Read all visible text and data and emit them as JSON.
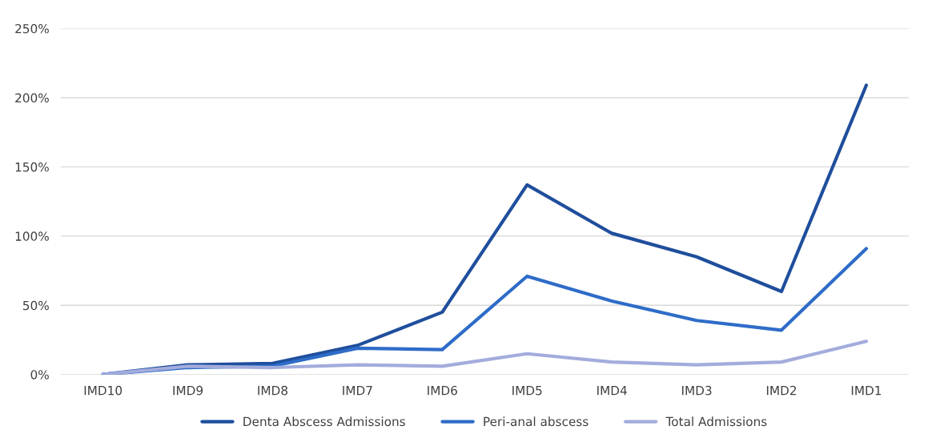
{
  "chart_data": {
    "type": "line",
    "categories": [
      "IMD10",
      "IMD9",
      "IMD8",
      "IMD7",
      "IMD6",
      "IMD5",
      "IMD4",
      "IMD3",
      "IMD2",
      "IMD1"
    ],
    "series": [
      {
        "name": "Denta Abscess Admissions",
        "color": "#1f4e9c",
        "values": [
          0,
          7,
          8,
          21,
          45,
          137,
          102,
          85,
          60,
          209
        ]
      },
      {
        "name": "Peri-anal abscess",
        "color": "#2e6cc8",
        "values": [
          0,
          5,
          6,
          19,
          18,
          71,
          53,
          39,
          32,
          91
        ]
      },
      {
        "name": "Total Admissions",
        "color": "#a3acdc",
        "values": [
          0,
          6,
          5,
          7,
          6,
          15,
          9,
          7,
          9,
          24
        ]
      }
    ],
    "ylim": [
      0,
      250
    ],
    "yticks": [
      {
        "value": 0,
        "label": "0%"
      },
      {
        "value": 50,
        "label": "50%"
      },
      {
        "value": 100,
        "label": "100%"
      },
      {
        "value": 150,
        "label": "150%"
      },
      {
        "value": 200,
        "label": "200%"
      },
      {
        "value": 250,
        "label": "250%"
      }
    ],
    "grid": "y",
    "legend": "bottom",
    "marker": "none",
    "line_style": "solid"
  }
}
